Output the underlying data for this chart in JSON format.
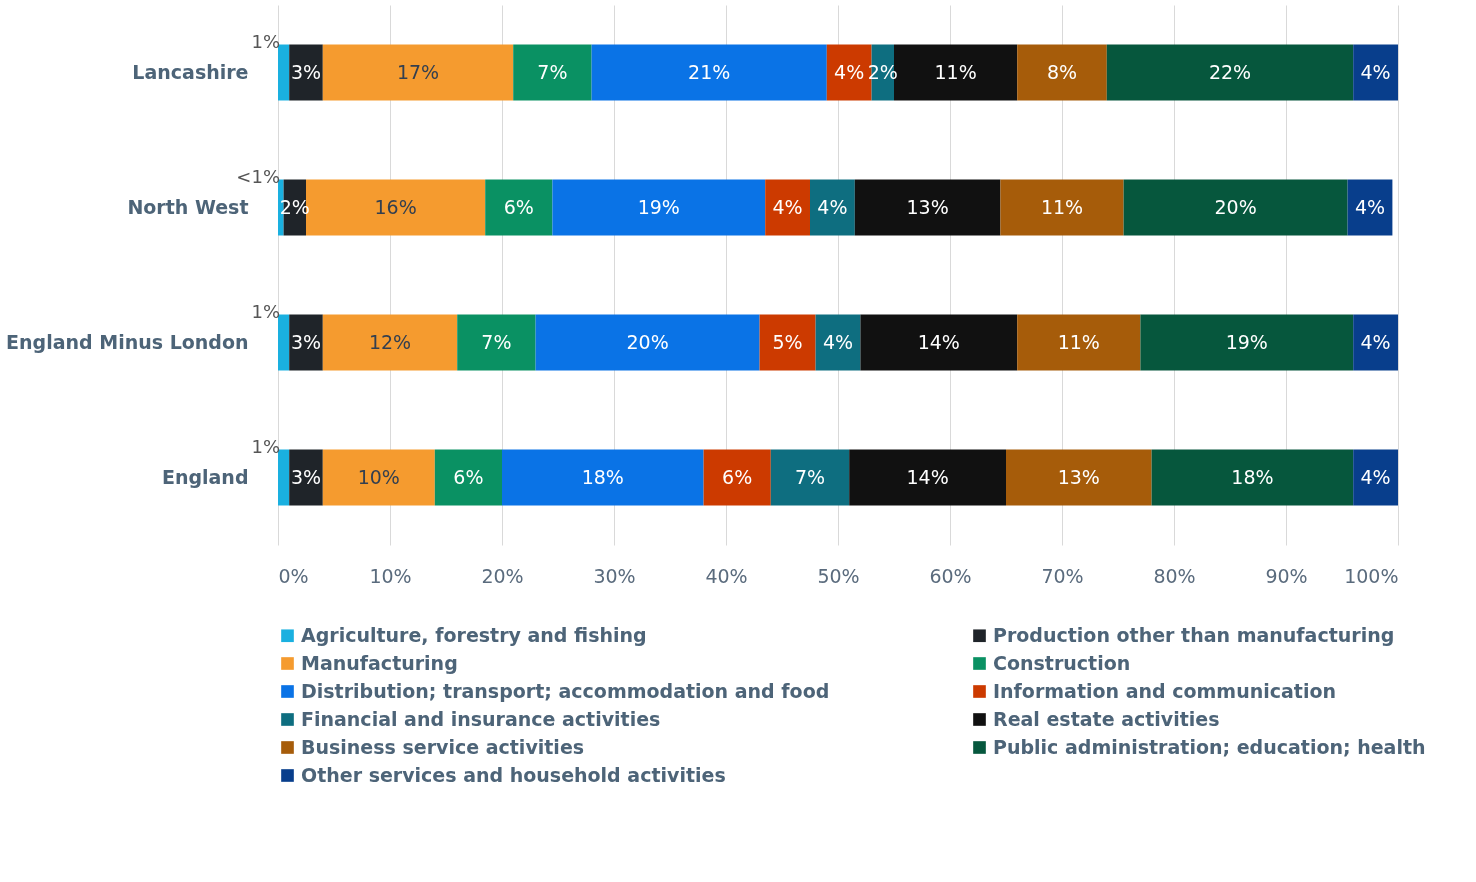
{
  "chart_data": {
    "type": "bar",
    "orientation": "horizontal",
    "stacked": true,
    "categories": [
      "Lancashire",
      "North West",
      "England Minus London",
      "England"
    ],
    "series": [
      {
        "name": "Agriculture, forestry and fishing",
        "color": "#1ab0e0",
        "values": [
          1,
          0.5,
          1,
          1
        ],
        "value_labels": [
          "1%",
          "<1%",
          "1%",
          "1%"
        ]
      },
      {
        "name": "Production other than manufacturing",
        "color": "#1f2429",
        "values": [
          3,
          2,
          3,
          3
        ],
        "value_labels": [
          "3%",
          "2%",
          "3%",
          "3%"
        ]
      },
      {
        "name": "Manufacturing",
        "color": "#f59b2f",
        "values": [
          17,
          16,
          12,
          10
        ],
        "value_labels": [
          "17%",
          "16%",
          "12%",
          "10%"
        ]
      },
      {
        "name": "Construction",
        "color": "#0a9163",
        "values": [
          7,
          6,
          7,
          6
        ],
        "value_labels": [
          "7%",
          "6%",
          "7%",
          "6%"
        ]
      },
      {
        "name": "Distribution; transport; accommodation and food",
        "color": "#0a73e6",
        "values": [
          21,
          19,
          20,
          18
        ],
        "value_labels": [
          "21%",
          "19%",
          "20%",
          "18%"
        ]
      },
      {
        "name": "Information and communication",
        "color": "#cc3a00",
        "values": [
          4,
          4,
          5,
          6
        ],
        "value_labels": [
          "4%",
          "4%",
          "5%",
          "6%"
        ]
      },
      {
        "name": "Financial and insurance activities",
        "color": "#0e6e80",
        "values": [
          2,
          4,
          4,
          7
        ],
        "value_labels": [
          "2%",
          "4%",
          "4%",
          "7%"
        ]
      },
      {
        "name": "Real estate activities",
        "color": "#111111",
        "values": [
          11,
          13,
          14,
          14
        ],
        "value_labels": [
          "11%",
          "13%",
          "14%",
          "14%"
        ]
      },
      {
        "name": "Business service activities",
        "color": "#a65c0a",
        "values": [
          8,
          11,
          11,
          13
        ],
        "value_labels": [
          "8%",
          "11%",
          "11%",
          "13%"
        ]
      },
      {
        "name": "Public administration; education; health",
        "color": "#06573d",
        "values": [
          22,
          20,
          19,
          18
        ],
        "value_labels": [
          "22%",
          "20%",
          "19%",
          "18%"
        ]
      },
      {
        "name": "Other services and household activities",
        "color": "#083e8c",
        "values": [
          4,
          4,
          4,
          4
        ],
        "value_labels": [
          "4%",
          "4%",
          "4%",
          "4%"
        ]
      }
    ],
    "xlim": [
      0,
      100
    ],
    "xticks": [
      {
        "value": 0,
        "label": "0%"
      },
      {
        "value": 10,
        "label": "10%"
      },
      {
        "value": 20,
        "label": "20%"
      },
      {
        "value": 30,
        "label": "30%"
      },
      {
        "value": 40,
        "label": "40%"
      },
      {
        "value": 50,
        "label": "50%"
      },
      {
        "value": 60,
        "label": "60%"
      },
      {
        "value": 70,
        "label": "70%"
      },
      {
        "value": 80,
        "label": "80%"
      },
      {
        "value": 90,
        "label": "90%"
      },
      {
        "value": 100,
        "label": "100%"
      }
    ],
    "grid": "x",
    "legend": "bottom"
  }
}
